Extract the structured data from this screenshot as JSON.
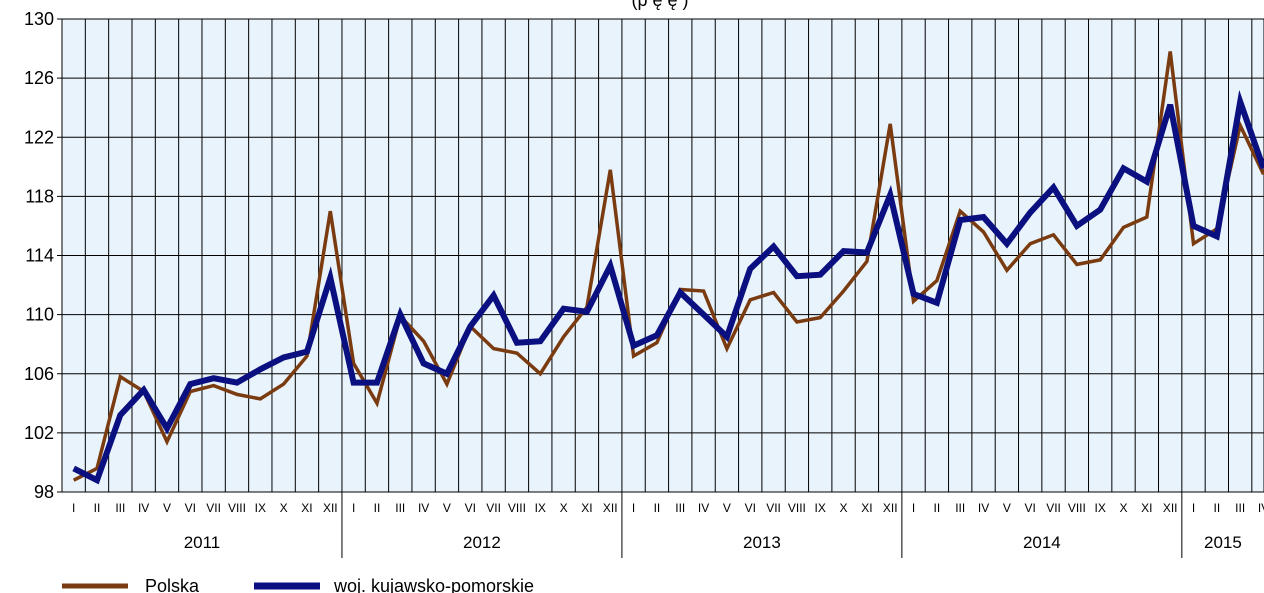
{
  "chart_data": {
    "type": "line",
    "title_fragment": "(p     ę            ę                       )",
    "ylim": [
      98,
      130
    ],
    "y_ticks": [
      98,
      102,
      106,
      110,
      114,
      118,
      122,
      126,
      130
    ],
    "month_labels": [
      "I",
      "II",
      "III",
      "IV",
      "V",
      "VI",
      "VII",
      "VIII",
      "IX",
      "X",
      "XI",
      "XII"
    ],
    "years": [
      {
        "label": "2011",
        "months": 12
      },
      {
        "label": "2012",
        "months": 12
      },
      {
        "label": "2013",
        "months": 12
      },
      {
        "label": "2014",
        "months": 12
      },
      {
        "label": "2015",
        "months": 4
      }
    ],
    "grid": true,
    "background_color": "#e9f3fb",
    "series": [
      {
        "name": "Polska",
        "color": "#7a3b10",
        "values": [
          98.8,
          99.6,
          105.8,
          104.8,
          101.4,
          104.8,
          105.2,
          104.6,
          104.3,
          105.3,
          107.2,
          117.0,
          106.7,
          104.0,
          109.9,
          108.2,
          105.3,
          109.2,
          107.7,
          107.4,
          106.0,
          108.5,
          110.5,
          119.8,
          107.2,
          108.1,
          111.7,
          111.6,
          107.7,
          111.0,
          111.5,
          109.5,
          109.8,
          111.6,
          113.6,
          122.9,
          110.9,
          112.3,
          117.0,
          115.6,
          113.0,
          114.8,
          115.4,
          113.4,
          113.7,
          115.9,
          116.6,
          127.8,
          114.8,
          115.8,
          122.8,
          119.5
        ]
      },
      {
        "name": "woj. kujawsko-pomorskie",
        "color": "#0b1080",
        "values": [
          99.6,
          98.8,
          103.2,
          104.9,
          102.3,
          105.3,
          105.7,
          105.4,
          106.3,
          107.1,
          107.5,
          112.5,
          105.4,
          105.4,
          110.0,
          106.7,
          106.0,
          109.2,
          111.3,
          108.1,
          108.2,
          110.4,
          110.2,
          113.3,
          107.9,
          108.6,
          111.5,
          110.0,
          108.5,
          113.1,
          114.6,
          112.6,
          112.7,
          114.3,
          114.2,
          118.1,
          111.4,
          110.8,
          116.4,
          116.6,
          114.8,
          116.9,
          118.6,
          116.0,
          117.1,
          119.9,
          119.0,
          124.2,
          116.0,
          115.3,
          124.4,
          119.9
        ]
      }
    ],
    "legend_position": "bottom-left"
  }
}
